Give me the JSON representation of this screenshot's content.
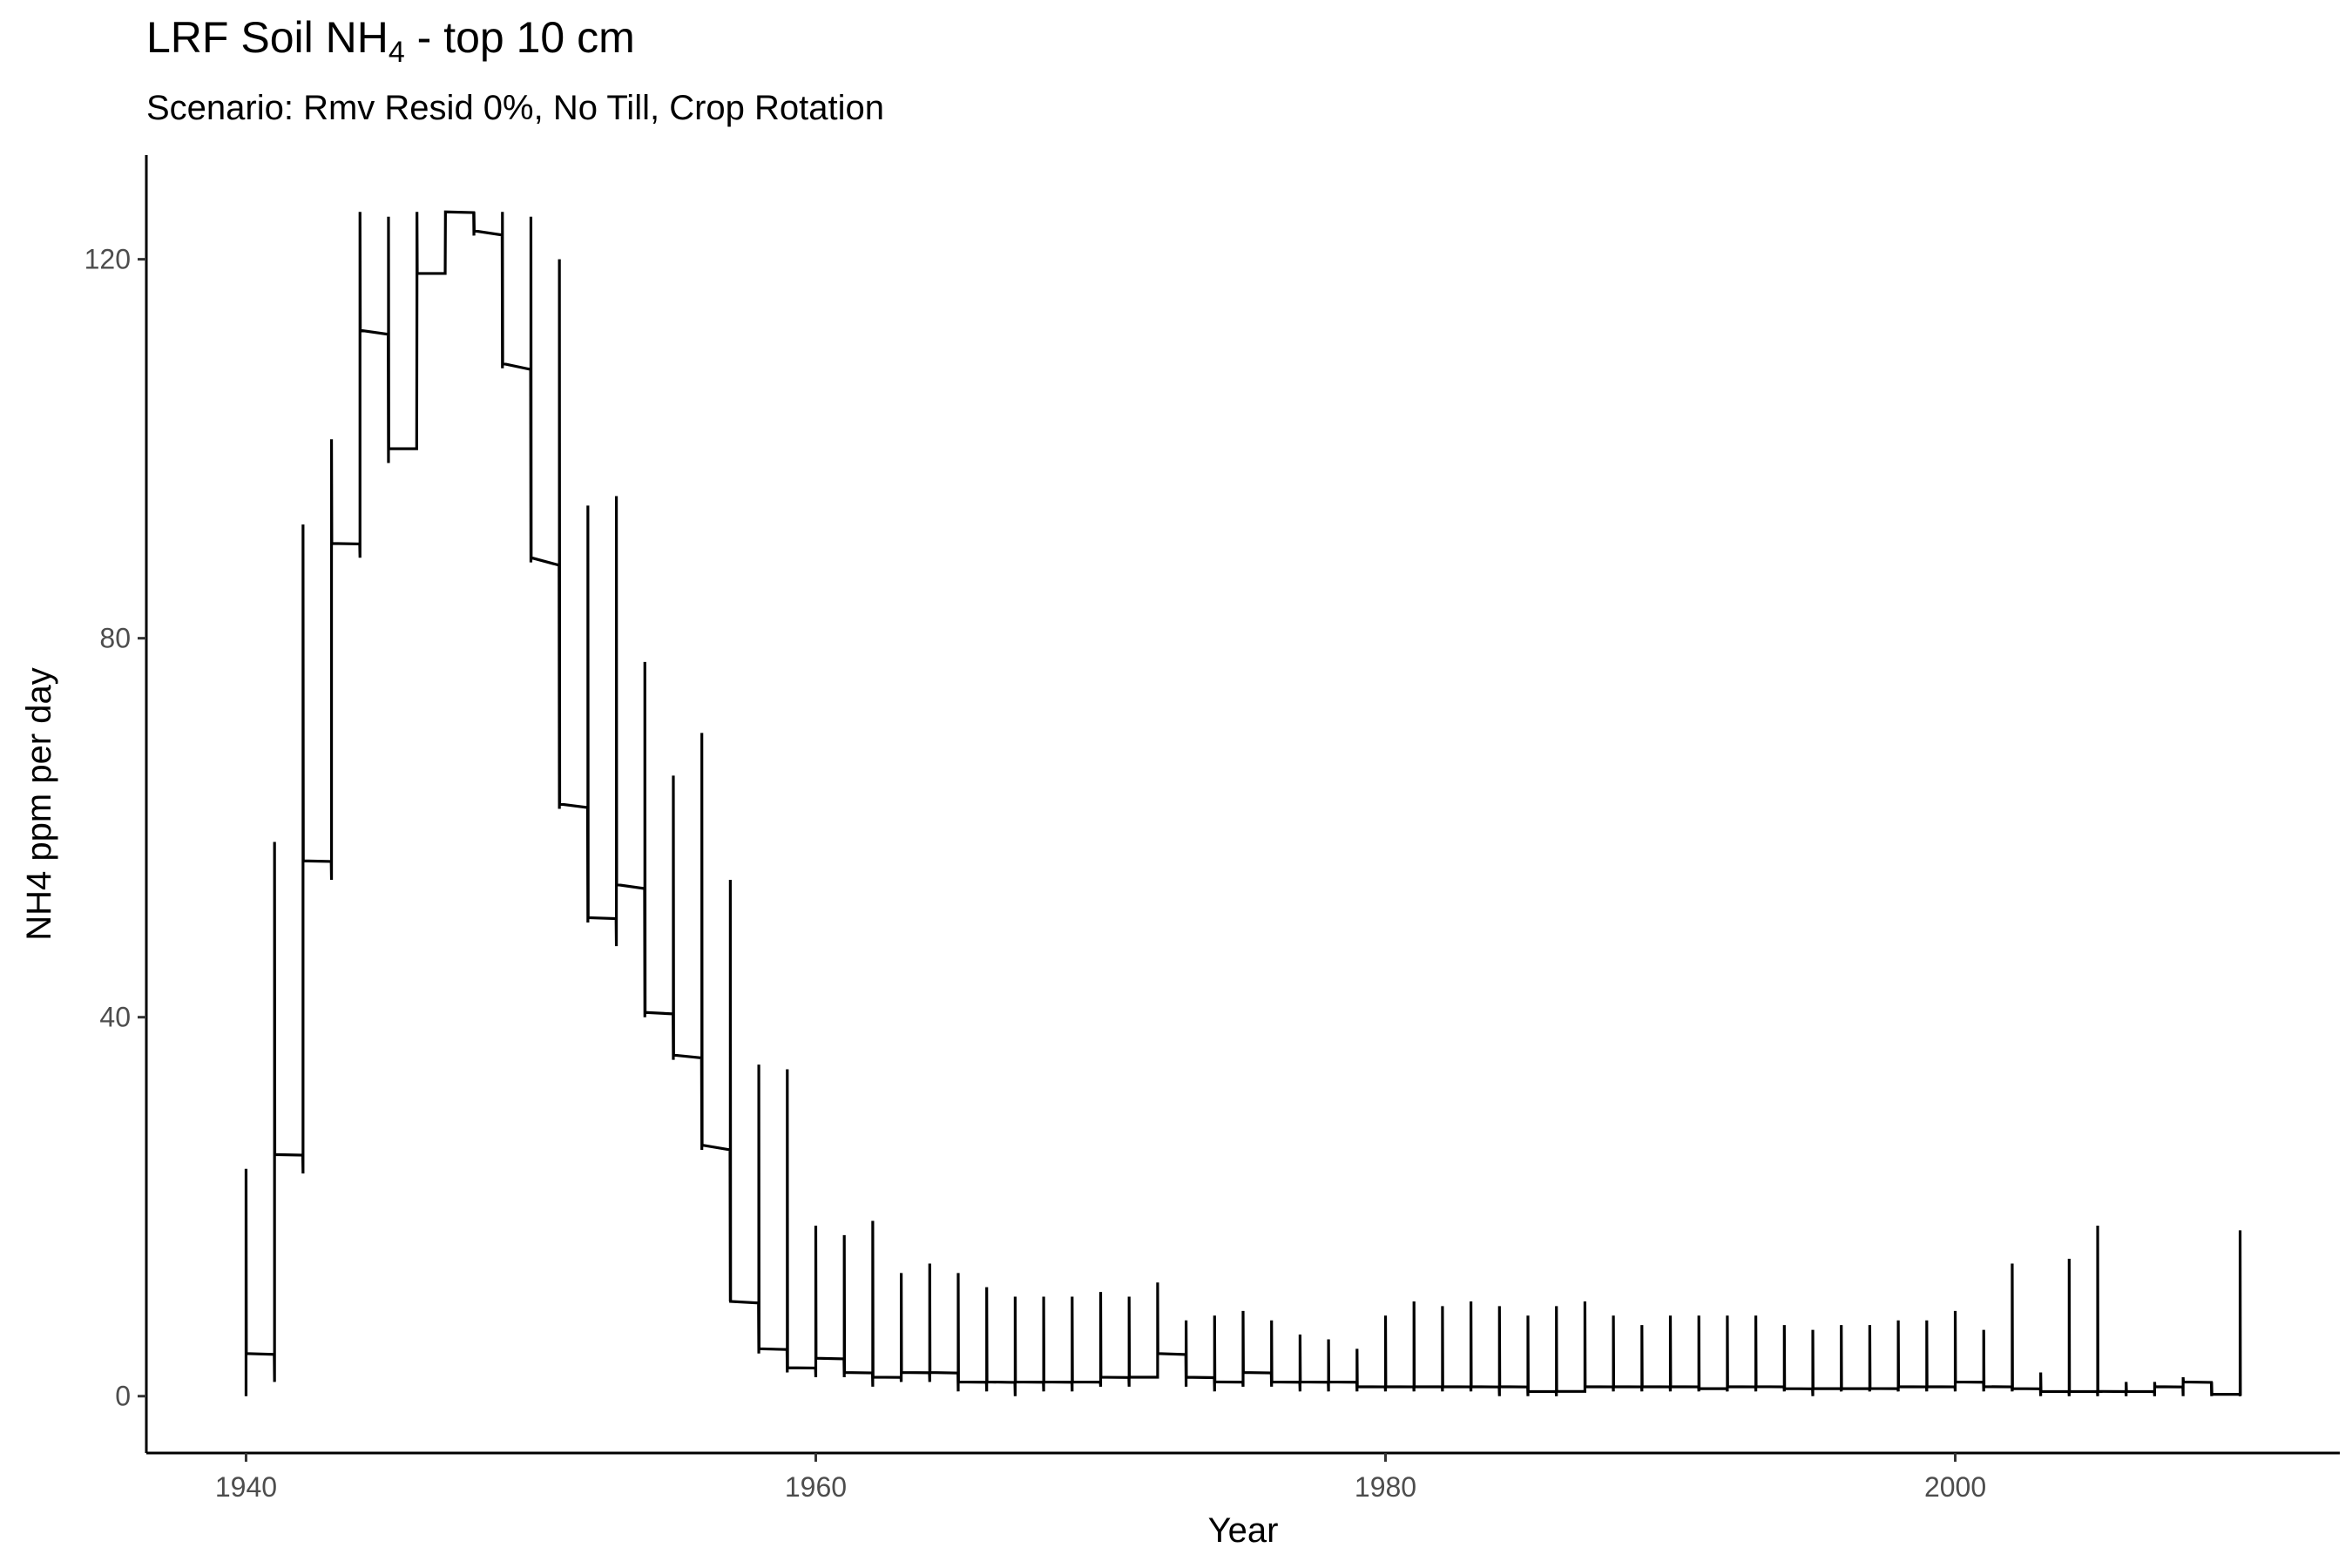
{
  "chart_data": {
    "type": "line",
    "title_prefix": "LRF Soil NH",
    "title_subscript": "4",
    "title_suffix": " - top 10 cm",
    "subtitle": "Scenario: Rmv Resid 0%, No Till, Crop Rotation",
    "xlabel": "Year",
    "ylabel": "NH4 ppm per day",
    "xlim": [
      1936.5,
      2013.5
    ],
    "ylim": [
      -6,
      131
    ],
    "x_ticks": [
      1940,
      1960,
      1980,
      2000
    ],
    "y_ticks": [
      0,
      40,
      80,
      120
    ],
    "grid": false,
    "line_color": "#000000",
    "series": [
      {
        "years": [
          1940,
          1941,
          1942,
          1943,
          1944,
          1945,
          1946,
          1947,
          1948,
          1949,
          1950,
          1951,
          1952,
          1953,
          1954,
          1955,
          1956,
          1957,
          1958,
          1959,
          1960,
          1961,
          1962,
          1963,
          1964,
          1965,
          1966,
          1967,
          1968,
          1969,
          1970,
          1971,
          1972,
          1973,
          1974,
          1975,
          1976,
          1977,
          1978,
          1979,
          1980,
          1981,
          1982,
          1983,
          1984,
          1985,
          1986,
          1987,
          1988,
          1989,
          1990,
          1991,
          1992,
          1993,
          1994,
          1995,
          1996,
          1997,
          1998,
          1999,
          2000,
          2001,
          2002,
          2003,
          2004,
          2005,
          2006,
          2007,
          2008,
          2009,
          2010
        ],
        "peak": [
          24,
          58.5,
          92,
          101,
          125,
          124.5,
          125,
          125,
          125,
          125,
          124.5,
          120,
          94,
          95,
          77.5,
          65.5,
          70,
          54.5,
          35,
          34.5,
          18,
          17,
          18.5,
          13,
          14,
          13,
          11.5,
          10.5,
          10.5,
          10.5,
          11,
          10.5,
          12,
          8,
          8.5,
          9,
          8,
          6.5,
          6,
          5,
          8.5,
          10,
          9.5,
          10,
          9.5,
          8.5,
          9.5,
          10,
          8.5,
          7.5,
          8.5,
          8.5,
          8.5,
          8.5,
          7.5,
          7,
          7.5,
          7.5,
          8,
          8,
          9,
          7,
          14,
          2.5,
          14.5,
          18,
          1.5,
          1.5,
          2,
          1.5,
          17.5
        ],
        "plateau": [
          4.5,
          25.5,
          56.5,
          90,
          112.5,
          100,
          118.5,
          125,
          123,
          109,
          88.5,
          62.5,
          50.5,
          54,
          40.5,
          36,
          26.5,
          10,
          5,
          3,
          4,
          2.5,
          2,
          2.5,
          2.5,
          1.5,
          1.5,
          1.5,
          1.5,
          1.5,
          2,
          2,
          4.5,
          2,
          1.5,
          2.5,
          1.5,
          1.5,
          1.5,
          1,
          1,
          1,
          1,
          1,
          1,
          0.5,
          0.5,
          1,
          1,
          1,
          1,
          0.8,
          1,
          1,
          0.8,
          0.8,
          0.8,
          0.8,
          1,
          1,
          1.5,
          1,
          0.8,
          0.5,
          0.5,
          0.5,
          0.5,
          1,
          1.5,
          0.2,
          0.2
        ],
        "trough": [
          0,
          1.5,
          23.5,
          54.5,
          88.5,
          98.5,
          116.5,
          125,
          122.5,
          108.5,
          88,
          62,
          50,
          47.5,
          40,
          35.5,
          26,
          10,
          4.5,
          2.5,
          2,
          2,
          1,
          1.5,
          1.5,
          0.5,
          0.5,
          0,
          0.5,
          0.5,
          1,
          1,
          2,
          1,
          0.5,
          1,
          1,
          0.5,
          0.5,
          0.5,
          0.5,
          0.5,
          0.5,
          0.5,
          0,
          0,
          0,
          0.5,
          0.5,
          0.5,
          0.5,
          0.5,
          0.5,
          0.5,
          0.5,
          0,
          0.5,
          0.5,
          0.5,
          0.5,
          0.5,
          0.5,
          0.5,
          0,
          0,
          0,
          0,
          0,
          0,
          0,
          0
        ]
      }
    ]
  }
}
